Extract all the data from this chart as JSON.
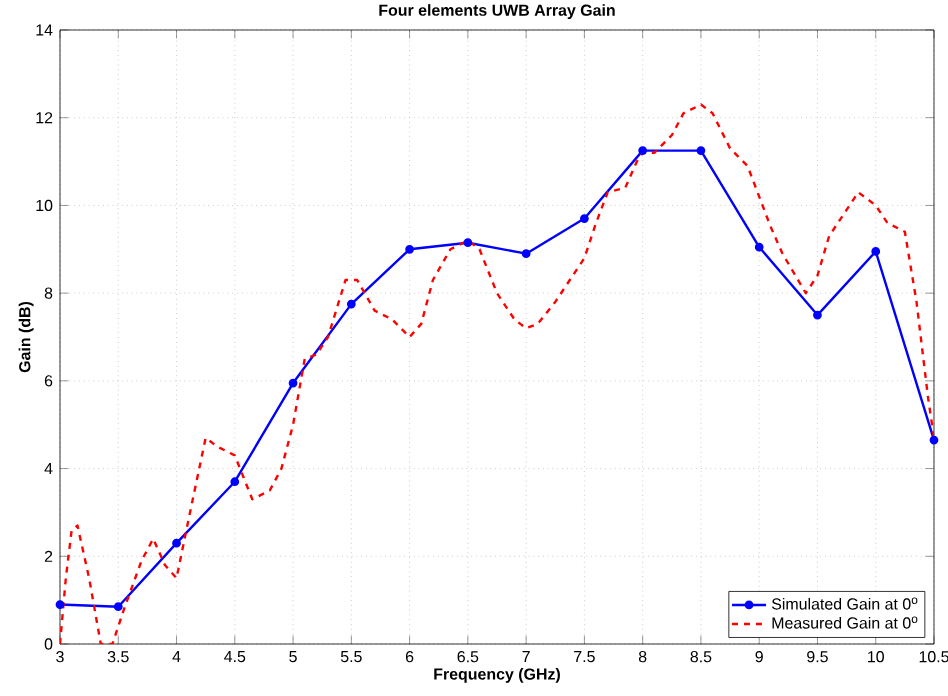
{
  "chart_data": {
    "type": "line",
    "title": "Four elements UWB Array Gain",
    "xlabel": "Frequency (GHz)",
    "ylabel": "Gain (dB)",
    "xlim": [
      3,
      10.5
    ],
    "ylim": [
      0,
      14
    ],
    "xticks": [
      3,
      3.5,
      4,
      4.5,
      5,
      5.5,
      6,
      6.5,
      7,
      7.5,
      8,
      8.5,
      9,
      9.5,
      10,
      10.5
    ],
    "yticks": [
      0,
      2,
      4,
      6,
      8,
      10,
      12,
      14
    ],
    "grid": true,
    "legend": "bottom right",
    "series": [
      {
        "name": "Simulated Gain at 0$^{o}$",
        "color": "#0000ff",
        "marker": "circle",
        "line_style": "solid",
        "x": [
          3,
          3.5,
          4,
          4.5,
          5,
          5.5,
          6,
          6.5,
          7,
          7.5,
          8,
          8.5,
          9,
          9.5,
          10,
          10.5
        ],
        "values": [
          0.9,
          0.85,
          2.3,
          3.7,
          5.95,
          7.75,
          9.0,
          9.15,
          8.9,
          9.7,
          11.25,
          11.25,
          9.05,
          7.5,
          8.95,
          4.65
        ]
      },
      {
        "name": "Measured Gain at 0$^{o}$",
        "color": "#ff0000",
        "marker": "none",
        "line_style": "dashed",
        "x": [
          3,
          3.05,
          3.1,
          3.15,
          3.25,
          3.35,
          3.45,
          3.55,
          3.7,
          3.8,
          3.9,
          4,
          4.1,
          4.25,
          4.35,
          4.5,
          4.65,
          4.8,
          4.9,
          5.0,
          5.1,
          5.2,
          5.3,
          5.45,
          5.55,
          5.7,
          5.85,
          6,
          6.1,
          6.2,
          6.35,
          6.5,
          6.6,
          6.75,
          6.9,
          7.0,
          7.1,
          7.25,
          7.4,
          7.5,
          7.6,
          7.7,
          7.85,
          7.95,
          8.0,
          8.1,
          8.25,
          8.35,
          8.5,
          8.6,
          8.75,
          8.9,
          9.0,
          9.1,
          9.2,
          9.4,
          9.5,
          9.6,
          9.7,
          9.85,
          10.0,
          10.1,
          10.25,
          10.35,
          10.45,
          10.5
        ],
        "values": [
          0,
          1.5,
          2.6,
          2.7,
          1.5,
          0,
          0,
          0.8,
          1.9,
          2.4,
          1.8,
          1.5,
          2.8,
          4.7,
          4.5,
          4.3,
          3.3,
          3.5,
          4.0,
          5.0,
          6.5,
          6.6,
          7.0,
          8.3,
          8.3,
          7.6,
          7.4,
          7.0,
          7.3,
          8.3,
          9.0,
          9.2,
          9.0,
          8.0,
          7.4,
          7.2,
          7.3,
          7.8,
          8.4,
          8.8,
          9.6,
          10.3,
          10.4,
          11.0,
          11.2,
          11.2,
          11.6,
          12.1,
          12.3,
          12.1,
          11.3,
          10.9,
          10.2,
          9.5,
          8.9,
          8.0,
          8.4,
          9.3,
          9.7,
          10.3,
          10.0,
          9.6,
          9.4,
          7.8,
          5.6,
          4.7
        ]
      }
    ]
  }
}
